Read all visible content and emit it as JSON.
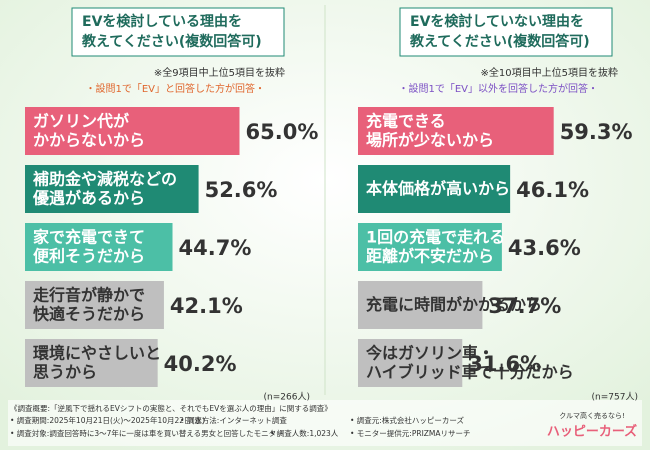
{
  "chart_data": [
    {
      "type": "bar",
      "title": [
        "EVを検討している理由を",
        "教えてください(複数回答可)"
      ],
      "notes": [
        "※全9項目中上位5項目を抜粋",
        "・設問1で「EV」と回答した方が回答・"
      ],
      "note_color": "#e0662d",
      "categories": [
        "ガソリン代が\nかからないから",
        "補助金や減税などの\n優遇があるから",
        "家で充電できて\n便利そうだから",
        "走行音が静かで\n快適そうだから",
        "環境にやさしいと\n思うから"
      ],
      "values": [
        65.0,
        52.6,
        44.7,
        42.1,
        40.2
      ],
      "value_labels": [
        "65.0%",
        "52.6%",
        "44.7%",
        "42.1%",
        "40.2%"
      ],
      "colors": [
        "#e8607a",
        "#1f8a74",
        "#4cbfa6",
        "#bfbfbf",
        "#bfbfbf"
      ],
      "text_colors": [
        "#ffffff",
        "#ffffff",
        "#ffffff",
        "#333333",
        "#333333"
      ],
      "sample": "(n=266人)"
    },
    {
      "type": "bar",
      "title": [
        "EVを検討していない理由を",
        "教えてください(複数回答可)"
      ],
      "notes": [
        "※全10項目中上位5項目を抜粋",
        "・設問1で「EV」以外を回答した方が回答・"
      ],
      "note_color": "#7b4fc4",
      "categories": [
        "充電できる\n場所が少ないから",
        "本体価格が高いから",
        "1回の充電で走れる\n距離が不安だから",
        "充電に時間がかかるから",
        "今はガソリン車・\nハイブリッド車で十分だから"
      ],
      "values": [
        59.3,
        46.1,
        43.6,
        37.7,
        31.6
      ],
      "value_labels": [
        "59.3%",
        "46.1%",
        "43.6%",
        "37.7%",
        "31.6%"
      ],
      "colors": [
        "#e8607a",
        "#1f8a74",
        "#4cbfa6",
        "#bfbfbf",
        "#bfbfbf"
      ],
      "text_colors": [
        "#ffffff",
        "#ffffff",
        "#ffffff",
        "#333333",
        "#333333"
      ],
      "sample": "(n=757人)"
    }
  ],
  "footer": {
    "items": [
      "《調査概要:「逆風下で揺れるEVシフトの実態と、それでもEVを選ぶ人の理由」に関する調査》",
      "• 調査期間:2025年10月21日(火)～2025年10月22日(水)",
      "• 調査方法:インターネット調査",
      "• 調査元:株式会社ハッピーカーズ",
      "• 調査対象:調査回答時に3～7年に一度は車を買い替える男女と回答したモニター",
      "• 調査人数:1,023人",
      "• モニター提供元:PRIZMAリサーチ"
    ],
    "logo_tagline": "クルマ高く売るなら!",
    "logo": "ハッピーカーズ"
  }
}
